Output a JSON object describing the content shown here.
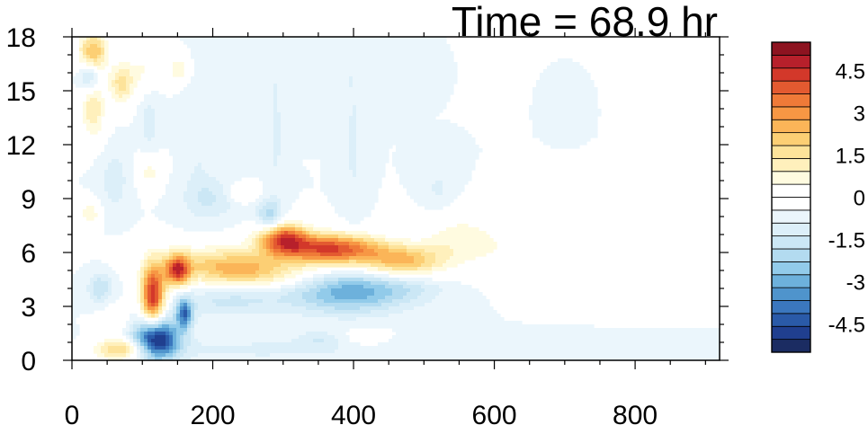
{
  "chart_data": {
    "type": "heatmap",
    "title": "Time = 68.9 hr",
    "xlabel": "",
    "ylabel": "",
    "xlim": [
      0,
      920
    ],
    "ylim": [
      0,
      18
    ],
    "x_ticks": [
      "0",
      "200",
      "400",
      "600",
      "800"
    ],
    "y_ticks": [
      "0",
      "3",
      "6",
      "9",
      "12",
      "15",
      "18"
    ],
    "colorbar": {
      "min": -5.5,
      "max": 5.5,
      "step": 0.5,
      "tick_labels": [
        "4.5",
        "3",
        "1.5",
        "0",
        "-1.5",
        "-3",
        "-4.5"
      ],
      "colors": [
        "#1b2c62",
        "#203f8f",
        "#2a5aa8",
        "#3b77be",
        "#4f94cc",
        "#6db1dc",
        "#92cbea",
        "#b3dbf0",
        "#cbe7f5",
        "#dceff9",
        "#ebf6fc",
        "#ffffff",
        "#ffffff",
        "#fffbe0",
        "#fff0bc",
        "#fde39a",
        "#fccf74",
        "#fbb558",
        "#f79744",
        "#ef7a38",
        "#e35a30",
        "#d3382a",
        "#b7202b",
        "#8d1320"
      ]
    },
    "features": [
      {
        "x": 120,
        "y": 1.2,
        "sx": 22,
        "sy": 0.8,
        "v": -5.5,
        "rot": 0
      },
      {
        "x": 160,
        "y": 2.6,
        "sx": 8,
        "sy": 0.6,
        "v": -3.5,
        "rot": 0
      },
      {
        "x": 115,
        "y": 3.6,
        "sx": 12,
        "sy": 1.2,
        "v": 5.5,
        "rot": 0
      },
      {
        "x": 150,
        "y": 5.0,
        "sx": 12,
        "sy": 0.6,
        "v": 4.5,
        "rot": 0
      },
      {
        "x": 70,
        "y": 0.6,
        "sx": 28,
        "sy": 0.4,
        "v": 3.0,
        "rot": 0
      },
      {
        "x": 240,
        "y": 5.0,
        "sx": 70,
        "sy": 0.8,
        "v": 3.5,
        "rot": -0.15
      },
      {
        "x": 300,
        "y": 6.8,
        "sx": 25,
        "sy": 0.6,
        "v": 4.5,
        "rot": 0
      },
      {
        "x": 370,
        "y": 6.2,
        "sx": 50,
        "sy": 0.6,
        "v": 5.0,
        "rot": 0
      },
      {
        "x": 470,
        "y": 5.5,
        "sx": 40,
        "sy": 0.6,
        "v": 3.0,
        "rot": 0
      },
      {
        "x": 550,
        "y": 6.8,
        "sx": 40,
        "sy": 1.0,
        "v": 1.2,
        "rot": 0
      },
      {
        "x": 680,
        "y": 6.0,
        "sx": 80,
        "sy": 1.0,
        "v": 0.9,
        "rot": 0
      },
      {
        "x": 780,
        "y": 7.5,
        "sx": 30,
        "sy": 1.0,
        "v": 0.8,
        "rot": 0
      },
      {
        "x": 700,
        "y": 9.7,
        "sx": 30,
        "sy": 0.6,
        "v": 0.5,
        "rot": 0
      },
      {
        "x": 390,
        "y": 3.8,
        "sx": 60,
        "sy": 0.8,
        "v": -3.0,
        "rot": 0
      },
      {
        "x": 240,
        "y": 3.6,
        "sx": 60,
        "sy": 0.7,
        "v": -1.5,
        "rot": 0.15
      },
      {
        "x": 480,
        "y": 4.0,
        "sx": 40,
        "sy": 0.5,
        "v": -0.6,
        "rot": 0
      },
      {
        "x": 270,
        "y": 0.6,
        "sx": 150,
        "sy": 0.5,
        "v": -0.6,
        "rot": 0
      },
      {
        "x": 350,
        "y": 1.2,
        "sx": 20,
        "sy": 0.3,
        "v": -0.8,
        "rot": 0
      },
      {
        "x": 420,
        "y": 1.3,
        "sx": 18,
        "sy": 0.3,
        "v": 1.0,
        "rot": 0
      },
      {
        "x": 30,
        "y": 17.2,
        "sx": 15,
        "sy": 0.8,
        "v": 3.0,
        "rot": 0
      },
      {
        "x": 25,
        "y": 15.8,
        "sx": 10,
        "sy": 0.6,
        "v": -2.0,
        "rot": 0
      },
      {
        "x": 30,
        "y": 14.0,
        "sx": 12,
        "sy": 1.2,
        "v": 2.0,
        "rot": 0
      },
      {
        "x": 70,
        "y": 15.4,
        "sx": 12,
        "sy": 0.8,
        "v": 2.2,
        "rot": 0
      },
      {
        "x": 100,
        "y": 16.2,
        "sx": 15,
        "sy": 1.0,
        "v": 1.0,
        "rot": 0
      },
      {
        "x": 150,
        "y": 16.2,
        "sx": 10,
        "sy": 0.5,
        "v": 1.5,
        "rot": 0
      },
      {
        "x": 110,
        "y": 13.3,
        "sx": 10,
        "sy": 1.2,
        "v": -0.8,
        "rot": 0
      },
      {
        "x": 110,
        "y": 10.5,
        "sx": 12,
        "sy": 0.7,
        "v": 1.2,
        "rot": 0
      },
      {
        "x": 60,
        "y": 10.0,
        "sx": 15,
        "sy": 1.2,
        "v": -0.8,
        "rot": 0
      },
      {
        "x": 25,
        "y": 8.2,
        "sx": 10,
        "sy": 0.5,
        "v": 1.5,
        "rot": 0
      },
      {
        "x": 40,
        "y": 4.0,
        "sx": 12,
        "sy": 0.6,
        "v": -1.5,
        "rot": 0
      },
      {
        "x": 200,
        "y": 9.0,
        "sx": 30,
        "sy": 0.8,
        "v": -1.0,
        "rot": 0
      },
      {
        "x": 240,
        "y": 9.3,
        "sx": 15,
        "sy": 0.4,
        "v": 1.2,
        "rot": 0
      },
      {
        "x": 280,
        "y": 8.0,
        "sx": 12,
        "sy": 0.6,
        "v": -2.0,
        "rot": 0
      },
      {
        "x": 290,
        "y": 12.5,
        "sx": 8,
        "sy": 3.0,
        "v": -0.6,
        "rot": 0
      },
      {
        "x": 400,
        "y": 12.0,
        "sx": 10,
        "sy": 3.0,
        "v": -0.6,
        "rot": 0
      },
      {
        "x": 350,
        "y": 16.0,
        "sx": 40,
        "sy": 1.0,
        "v": -0.5,
        "rot": 0
      },
      {
        "x": 520,
        "y": 9.5,
        "sx": 15,
        "sy": 0.8,
        "v": -0.6,
        "rot": 0
      },
      {
        "x": 700,
        "y": 13.8,
        "sx": 10,
        "sy": 0.6,
        "v": -0.5,
        "rot": 0
      },
      {
        "x": 60,
        "y": 2.2,
        "sx": 15,
        "sy": 0.6,
        "v": 1.0,
        "rot": 0
      },
      {
        "x": 180,
        "y": 12.0,
        "sx": 15,
        "sy": 2.5,
        "v": -0.5,
        "rot": 0
      }
    ]
  }
}
